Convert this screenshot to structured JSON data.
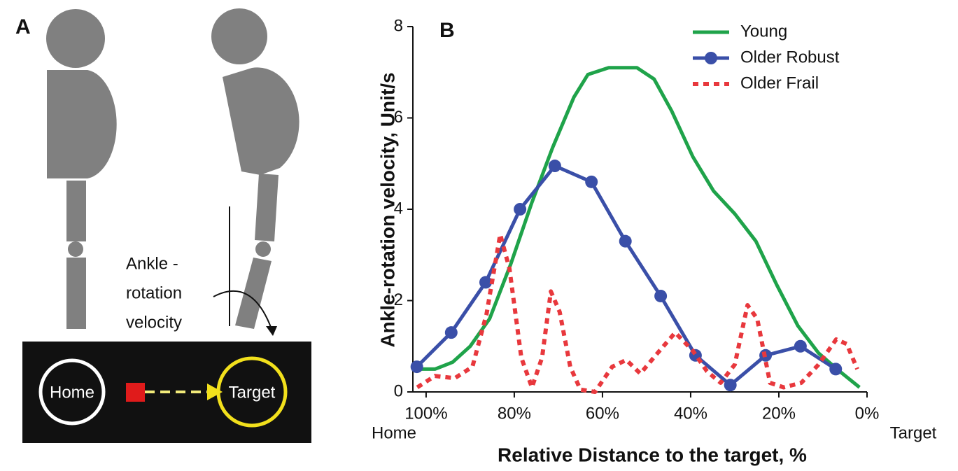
{
  "panel_a": {
    "label": "A",
    "annotation": [
      "Ankle -",
      "rotation",
      "velocity"
    ],
    "home": "Home",
    "target": "Target"
  },
  "chart_data": {
    "type": "line",
    "panel_label": "B",
    "y_label": "Ankle-rotation velocity, Unit/s",
    "x_label": "Relative Distance to the target, %",
    "x_start_label": "Home",
    "x_end_label": "Target",
    "xlim": [
      103,
      0
    ],
    "ylim": [
      0,
      8
    ],
    "xticks": [
      {
        "value": 100,
        "label": "100%"
      },
      {
        "value": 80,
        "label": "80%"
      },
      {
        "value": 60,
        "label": "60%"
      },
      {
        "value": 40,
        "label": "40%"
      },
      {
        "value": 20,
        "label": "20%"
      },
      {
        "value": 0,
        "label": "0%"
      }
    ],
    "yticks": [
      0,
      2,
      4,
      6,
      8
    ],
    "legend": "top-right",
    "series": [
      {
        "name": "Young",
        "color": "#1fa34a",
        "style": "solid",
        "x": [
          102,
          98,
          94,
          90,
          85.6,
          80.8,
          76,
          71.3,
          66.5,
          63.3,
          58.6,
          52.2,
          48.3,
          44.3,
          39.5,
          34.8,
          30,
          25.2,
          20.5,
          15.7,
          11,
          6.2,
          1.7
        ],
        "values": [
          0.5,
          0.5,
          0.65,
          1.0,
          1.6,
          2.8,
          4.15,
          5.35,
          6.45,
          6.95,
          7.1,
          7.1,
          6.85,
          6.15,
          5.15,
          4.4,
          3.9,
          3.3,
          2.35,
          1.45,
          0.85,
          0.45,
          0.1
        ]
      },
      {
        "name": "Older Robust",
        "color": "#3a4fa8",
        "style": "solid",
        "marker": "circle",
        "x": [
          102.1,
          94.3,
          86.5,
          78.7,
          70.8,
          62.5,
          54.8,
          46.8,
          38.9,
          31.0,
          23.0,
          15.1,
          7.1
        ],
        "values": [
          0.55,
          1.3,
          2.4,
          4.0,
          4.95,
          4.6,
          3.3,
          2.1,
          0.8,
          0.15,
          0.8,
          1.0,
          0.5
        ]
      },
      {
        "name": "Older Frail",
        "color": "#e8383d",
        "style": "dotted",
        "x": [
          102,
          98,
          93.5,
          89.5,
          86.3,
          83.2,
          81.1,
          78.4,
          76,
          73.7,
          71.7,
          69.7,
          67.3,
          65,
          61.7,
          57.8,
          54.6,
          51.4,
          47.5,
          43.5,
          39.5,
          36.3,
          33.2,
          30,
          27.1,
          24.9,
          22,
          18.9,
          14.9,
          11,
          7,
          4.6,
          2.2
        ],
        "values": [
          0.1,
          0.35,
          0.3,
          0.55,
          1.7,
          3.45,
          2.7,
          0.75,
          0.1,
          0.75,
          2.2,
          1.75,
          0.55,
          0.05,
          0,
          0.55,
          0.7,
          0.4,
          0.85,
          1.3,
          0.9,
          0.45,
          0.2,
          0.6,
          1.9,
          1.6,
          0.2,
          0.1,
          0.2,
          0.6,
          1.15,
          1.05,
          0.5
        ]
      }
    ]
  }
}
